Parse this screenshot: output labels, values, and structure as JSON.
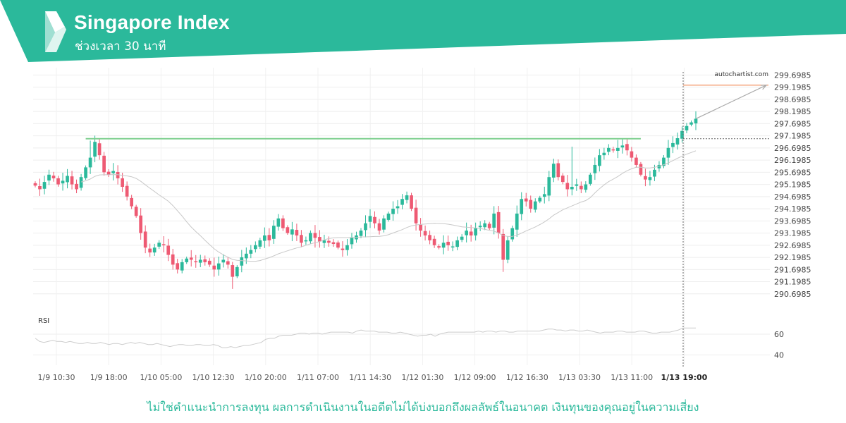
{
  "header": {
    "title": "Singapore Index",
    "subtitle": "ช่วงเวลา 30 นาที",
    "brand_color": "#2bb99b",
    "logo_icon": "autochartist-logo-icon"
  },
  "watermark": "autochartist.com",
  "disclaimer": "ไม่ใช่คำแนะนำการลงทุน ผลการดำเนินงานในอดีตไม่ได้บ่งบอกถึงผลลัพธ์ในอนาคต เงินทุนของคุณอยู่ในความเสี่ยง",
  "chart_data": {
    "type": "candlestick",
    "title": "",
    "ylim": [
      290.2,
      300.0
    ],
    "y_ticks": [
      "299.6985",
      "299.1985",
      "298.6985",
      "298.1985",
      "297.6985",
      "297.1985",
      "296.6985",
      "296.1985",
      "295.6985",
      "295.1985",
      "294.6985",
      "294.1985",
      "293.6985",
      "293.1985",
      "292.6985",
      "292.1985",
      "291.6985",
      "291.1985",
      "290.6985"
    ],
    "x_ticks": [
      "1/9 10:30",
      "1/9 18:00",
      "1/10 05:00",
      "1/10 12:30",
      "1/10 20:00",
      "1/11 07:00",
      "1/11 14:30",
      "1/12 01:30",
      "1/12 09:00",
      "1/12 16:30",
      "1/13 03:30",
      "1/13 11:00",
      "1/13 19:00"
    ],
    "x_tick_highlight": "1/13 19:00",
    "colors": {
      "up": "#2bb99b",
      "down": "#ee5a73",
      "resistance": "#7fcf8f",
      "target": "#f08a55",
      "ma": "#c8c8c8",
      "rsi": "#cccccc"
    },
    "resistance_level": 297.08,
    "current_level": 297.08,
    "target_level": 299.28,
    "projection": {
      "from": 297.9,
      "to": 299.28
    },
    "close_path": [
      295.15,
      295.0,
      295.3,
      295.6,
      295.45,
      295.2,
      295.35,
      295.55,
      295.2,
      295.0,
      295.5,
      295.9,
      296.3,
      296.95,
      296.4,
      295.7,
      295.6,
      295.75,
      295.45,
      295.1,
      294.7,
      294.3,
      293.9,
      293.2,
      292.6,
      292.4,
      292.6,
      292.8,
      292.7,
      292.3,
      291.9,
      291.7,
      292.0,
      292.15,
      292.1,
      292.0,
      292.1,
      292.0,
      291.9,
      291.7,
      291.95,
      292.1,
      291.9,
      291.4,
      291.8,
      292.2,
      292.35,
      292.5,
      292.7,
      292.9,
      293.1,
      292.9,
      293.5,
      293.8,
      293.4,
      293.2,
      293.35,
      293.1,
      292.8,
      292.9,
      293.2,
      293.0,
      292.85,
      292.9,
      292.8,
      292.75,
      292.6,
      292.5,
      292.7,
      293.0,
      293.1,
      293.3,
      293.6,
      293.9,
      293.6,
      293.3,
      293.8,
      294.0,
      294.2,
      294.3,
      294.6,
      294.75,
      294.2,
      293.6,
      293.3,
      293.1,
      292.9,
      292.7,
      292.6,
      292.8,
      292.7,
      292.65,
      292.9,
      293.05,
      293.3,
      293.1,
      293.4,
      293.5,
      293.6,
      293.4,
      294.0,
      293.2,
      292.1,
      292.9,
      293.4,
      294.0,
      294.6,
      294.5,
      294.2,
      294.5,
      294.65,
      294.8,
      295.5,
      296.05,
      295.5,
      295.3,
      295.0,
      295.1,
      295.2,
      295.0,
      295.2,
      295.6,
      296.0,
      296.4,
      296.5,
      296.7,
      296.6,
      296.7,
      296.8,
      296.6,
      296.3,
      296.0,
      295.6,
      295.4,
      295.5,
      295.8,
      296.0,
      296.3,
      296.7,
      296.9,
      297.1,
      297.4,
      297.6,
      297.75,
      297.9
    ],
    "rsi": {
      "label": "RSI",
      "y_ticks": [
        "60",
        "40"
      ],
      "ylim": [
        30,
        75
      ],
      "values": [
        56,
        53,
        52,
        53,
        54,
        53,
        53,
        52,
        53,
        52,
        51,
        51,
        52,
        51,
        51,
        52,
        51,
        50,
        51,
        51,
        50,
        51,
        52,
        51,
        52,
        51,
        50,
        50,
        51,
        50,
        49,
        48,
        49,
        50,
        50,
        49,
        49,
        50,
        50,
        49,
        49,
        50,
        49,
        47,
        47,
        48,
        47,
        48,
        49,
        49,
        50,
        51,
        52,
        55,
        56,
        56,
        58,
        59,
        59,
        59,
        60,
        61,
        61,
        60,
        61,
        61,
        60,
        61,
        62,
        62,
        62,
        62,
        62,
        61,
        63,
        64,
        63,
        63,
        63,
        62,
        62,
        62,
        61,
        61,
        62,
        61,
        60,
        59,
        58,
        59,
        59,
        60,
        58,
        60,
        61,
        62,
        62,
        62,
        62,
        62,
        62,
        62,
        63,
        62,
        63,
        63,
        62,
        63,
        63,
        62,
        62,
        63,
        63,
        63,
        63,
        63,
        63,
        64,
        65,
        65,
        64,
        64,
        63,
        64,
        64,
        63,
        63,
        64,
        63,
        62,
        61,
        62,
        62,
        62,
        63,
        63,
        62,
        62,
        62,
        63,
        63,
        62,
        61,
        61,
        62,
        62,
        62,
        63,
        64,
        66,
        66,
        66,
        66
      ]
    }
  }
}
